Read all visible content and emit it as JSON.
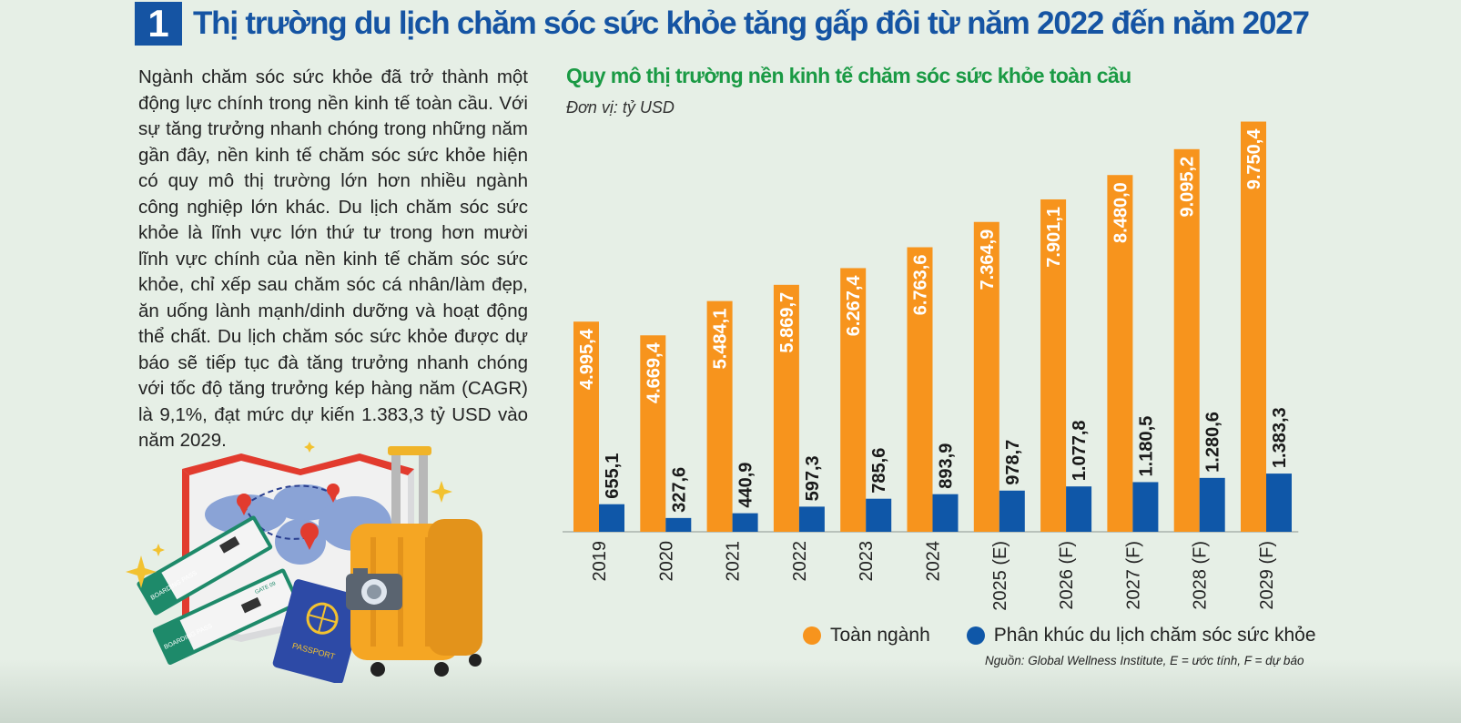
{
  "header": {
    "number": "1",
    "title": "Thị trường du lịch chăm sóc sức khỏe tăng gấp đôi từ năm 2022 đến năm 2027"
  },
  "body_text": "Ngành chăm sóc sức khỏe đã trở thành một động lực chính trong nền kinh tế toàn cầu. Với sự tăng trưởng nhanh chóng trong những năm gần đây, nền kinh tế chăm sóc sức khỏe hiện có quy mô thị trường lớn hơn nhiều ngành công nghiệp lớn khác. Du lịch chăm sóc sức khỏe là lĩnh vực lớn thứ tư trong hơn mười lĩnh vực chính của nền kinh tế chăm sóc sức khỏe, chỉ xếp sau chăm sóc cá nhân/làm đẹp, ăn uống lành mạnh/dinh dưỡng và hoạt động thể chất. Du lịch chăm sóc sức khỏe được dự báo sẽ tiếp tục đà tăng trưởng nhanh chóng với tốc độ tăng trưởng kép hàng năm (CAGR) là 9,1%, đạt mức dự kiến 1.383,3 tỷ USD vào năm 2029.",
  "chart_data": {
    "type": "bar",
    "title": "Quy mô thị trường nền kinh tế chăm sóc sức khỏe toàn cầu",
    "unit": "Đơn vị: tỷ USD",
    "categories": [
      "2019",
      "2020",
      "2021",
      "2022",
      "2023",
      "2024",
      "2025 (E)",
      "2026 (F)",
      "2027 (F)",
      "2028 (F)",
      "2029 (F)"
    ],
    "series": [
      {
        "name": "Toàn ngành",
        "color": "#f7941d",
        "values": [
          4995.4,
          4669.4,
          5484.1,
          5869.7,
          6267.4,
          6763.6,
          7364.9,
          7901.1,
          8480.0,
          9095.2,
          9750.4
        ],
        "labels": [
          "4.995,4",
          "4.669,4",
          "5.484,1",
          "5.869,7",
          "6.267,4",
          "6.763,6",
          "7.364,9",
          "7.901,1",
          "8.480,0",
          "9.095,2",
          "9.750,4"
        ]
      },
      {
        "name": "Phân khúc du lịch chăm sóc sức khỏe",
        "color": "#0f57a8",
        "values": [
          655.1,
          327.6,
          440.9,
          597.3,
          785.6,
          893.9,
          978.7,
          1077.8,
          1180.5,
          1280.6,
          1383.3
        ],
        "labels": [
          "655,1",
          "327,6",
          "440,9",
          "597,3",
          "785,6",
          "893,9",
          "978,7",
          "1.077,8",
          "1.180,5",
          "1.280,6",
          "1.383,3"
        ]
      }
    ],
    "ylim": [
      0,
      10000
    ],
    "grid": false,
    "legend_position": "bottom"
  },
  "source": "Nguồn: Global Wellness Institute, E = ước tính, F = dự báo",
  "illustration": {
    "boarding_pass_label": "BOARDING PASS",
    "gate_label": "GATE 09",
    "passport_label": "PASSPORT"
  }
}
